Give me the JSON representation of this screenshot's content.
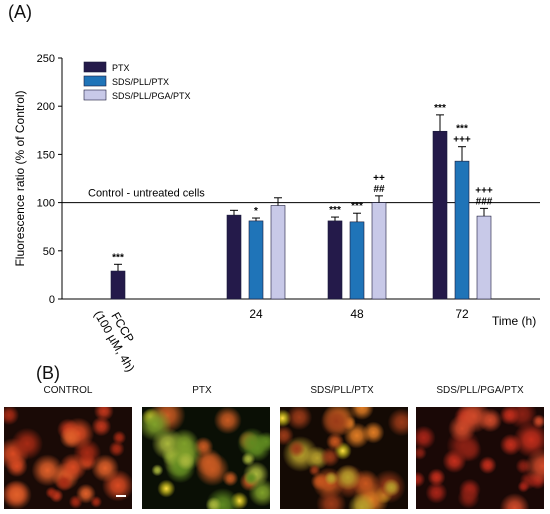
{
  "panel_a_label": "(A)",
  "panel_b_label": "(B)",
  "chart_data": {
    "type": "bar",
    "ylabel": "Fluorescence ratio (% of Control)",
    "xlabel": "Time (h)",
    "ylim": [
      0,
      250
    ],
    "yticks": [
      "0",
      "50",
      "100",
      "150",
      "200",
      "250"
    ],
    "categories": [
      "FCCP\n(100 µM, 4h)",
      "24",
      "48",
      "72"
    ],
    "series": [
      {
        "name": "PTX",
        "color": "#241a4a",
        "values": [
          29,
          87,
          81,
          174
        ],
        "errors": [
          7,
          5,
          4,
          17
        ]
      },
      {
        "name": "SDS/PLL/PTX",
        "color": "#1f74b8",
        "values": [
          null,
          81,
          80,
          143
        ],
        "errors": [
          null,
          3,
          9,
          15
        ]
      },
      {
        "name": "SDS/PLL/PGA/PTX",
        "color": "#c8c9e8",
        "values": [
          null,
          97,
          100,
          86
        ],
        "errors": [
          null,
          8,
          7,
          8
        ]
      }
    ],
    "reference_line": {
      "value": 100,
      "label": "Control - untreated cells"
    },
    "annotations": [
      {
        "category": 0,
        "series": 0,
        "text": [
          "***"
        ]
      },
      {
        "category": 1,
        "series": 1,
        "text": [
          "*"
        ]
      },
      {
        "category": 2,
        "series": 0,
        "text": [
          "***"
        ]
      },
      {
        "category": 2,
        "series": 1,
        "text": [
          "***"
        ]
      },
      {
        "category": 2,
        "series": 2,
        "text": [
          "++",
          "##"
        ]
      },
      {
        "category": 3,
        "series": 0,
        "text": [
          "***"
        ]
      },
      {
        "category": 3,
        "series": 1,
        "text": [
          "***",
          "+++"
        ]
      },
      {
        "category": 3,
        "series": 2,
        "text": [
          "+++",
          "###"
        ]
      }
    ],
    "legend_position": "top-left",
    "grid": false
  },
  "micrographs": [
    {
      "label": "CONTROL",
      "tint": "control"
    },
    {
      "label": "PTX",
      "tint": "ptx"
    },
    {
      "label": "SDS/PLL/PTX",
      "tint": "sdspll"
    },
    {
      "label": "SDS/PLL/PGA/PTX",
      "tint": "sdspga"
    }
  ]
}
